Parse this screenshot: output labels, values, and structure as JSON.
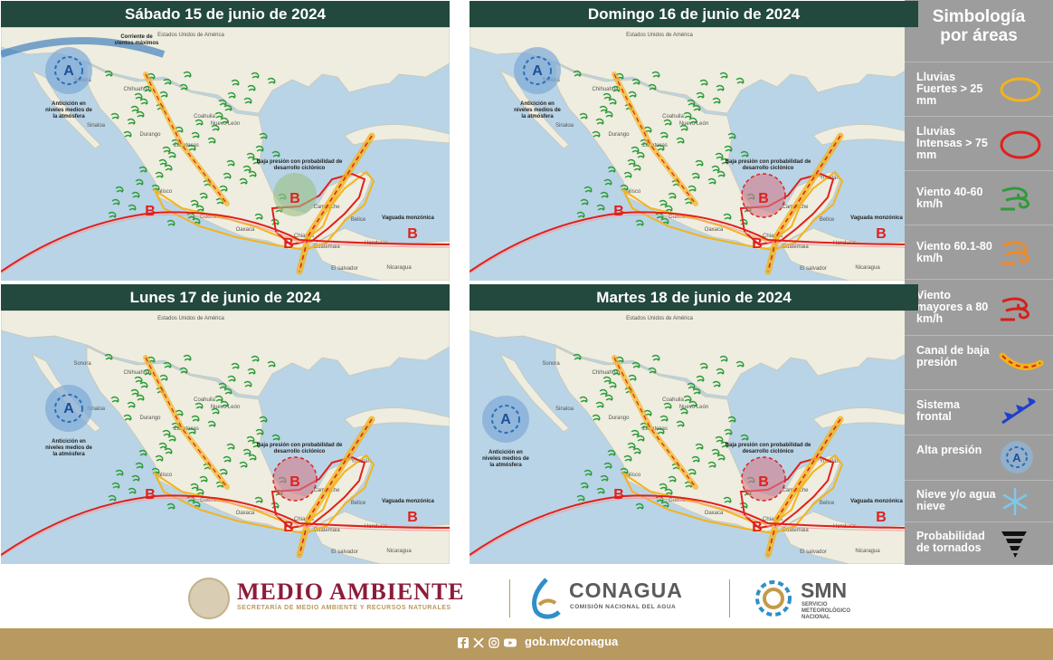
{
  "panels": [
    {
      "title": "Sábado 15 de junio de 2024",
      "high_label": "Anticición en niveles medios de la atmósfera",
      "jet_label": "Corriente de vientos máximos",
      "low_label": "Baja presión con probabilidad de desarrollo ciclónico",
      "trough_label": "Vaguada monzónica",
      "country_label": "Estados Unidos de América",
      "places": [
        "Sonora",
        "Chihuahua",
        "Sinaloa",
        "Durango",
        "Coahuila",
        "Nuevo León",
        "Zacatecas",
        "Jalisco",
        "Guerrero",
        "Oaxaca",
        "Chiapas",
        "Campeche",
        "Belice",
        "Honduras",
        "Guatemala",
        "El salvador",
        "Nicaragua"
      ],
      "low_symbols": [
        "B",
        "B",
        "B",
        "B"
      ]
    },
    {
      "title": "Domingo 16 de junio de 2024",
      "high_label": "Anticición en niveles medios de la atmósfera",
      "low_label": "Baja presión con probabilidad de desarrollo ciclónico",
      "trough_label": "Vaguada monzónica",
      "country_label": "Estados Unidos de América",
      "places": [
        "Sonora",
        "Chihuahua",
        "Sinaloa",
        "Durango",
        "Coahuila",
        "Nuevo León",
        "Zacatecas",
        "Jalisco",
        "Guerrero",
        "Oaxaca",
        "Chiapas",
        "Campeche",
        "Yucatán",
        "Belice",
        "Honduras",
        "Guatemala",
        "El salvador",
        "Nicaragua"
      ],
      "low_symbols": [
        "B",
        "B",
        "B",
        "B"
      ]
    },
    {
      "title": "Lunes 17 de junio de 2024",
      "high_label": "Anticición en niveles medios de la atmósfera",
      "low_label": "Baja presión con probabilidad de desarrollo ciclónico",
      "trough_label": "Vaguada monzónica",
      "country_label": "Estados Unidos de América",
      "places": [
        "Sonora",
        "Chihuahua",
        "Sinaloa",
        "Durango",
        "Coahuila",
        "Nuevo León",
        "Zacatecas",
        "Jalisco",
        "Guerrero",
        "Oaxaca",
        "Chiapas",
        "Campeche",
        "Yucatán",
        "Belice",
        "Honduras",
        "Guatemala",
        "El salvador",
        "Nicaragua"
      ],
      "low_symbols": [
        "B",
        "B",
        "B",
        "B"
      ]
    },
    {
      "title": "Martes 18 de junio de 2024",
      "high_label": "Anticición en niveles medios de la atmósfera",
      "low_label": "Baja presión con probabilidad de desarrollo ciclónico",
      "trough_label": "Vaguada monzónica",
      "country_label": "Estados Unidos de América",
      "places": [
        "Sonora",
        "Chihuahua",
        "Sinaloa",
        "Durango",
        "Coahuila",
        "Nuevo León",
        "Zacatecas",
        "Jalisco",
        "Guerrero",
        "Oaxaca",
        "Chiapas",
        "Campeche",
        "Yucatán",
        "Belice",
        "Honduras",
        "Guatemala",
        "El salvador",
        "Nicaragua"
      ],
      "low_symbols": [
        "B",
        "B",
        "B",
        "B"
      ]
    }
  ],
  "high_symbol": "A",
  "legend": {
    "title": "Simbología por áreas",
    "items": [
      {
        "label": "Lluvias Fuertes > 25 mm",
        "icon": "yellow-ellipse-icon",
        "color": "#f3b31b"
      },
      {
        "label": "Lluvias Intensas > 75 mm",
        "icon": "red-ellipse-icon",
        "color": "#e0201c"
      },
      {
        "label": "Viento 40-60 km/h",
        "icon": "green-wind-icon",
        "color": "#2e9b3a"
      },
      {
        "label": "Viento 60.1-80 km/h",
        "icon": "orange-wind-icon",
        "color": "#f08a2a"
      },
      {
        "label": "Viento mayores a 80 km/h",
        "icon": "red-wind-icon",
        "color": "#d6201c"
      },
      {
        "label": "Canal de baja presión",
        "icon": "low-pressure-channel-icon",
        "color": "#f3b31b"
      },
      {
        "label": "Sistema frontal",
        "icon": "front-icon",
        "color": "#1e3fcf"
      },
      {
        "label": "Alta presión",
        "icon": "high-pressure-icon",
        "color": "#2a6fb8"
      },
      {
        "label": "Nieve y/o agua nieve",
        "icon": "snowflake-icon",
        "color": "#7ec8ea"
      },
      {
        "label": "Probabilidad de tornados",
        "icon": "tornado-icon",
        "color": "#111111"
      }
    ]
  },
  "footer": {
    "medio_ambiente": "MEDIO AMBIENTE",
    "medio_ambiente_sub": "SECRETARÍA DE MEDIO AMBIENTE Y RECURSOS NATURALES",
    "conagua": "CONAGUA",
    "conagua_sub": "COMISIÓN NACIONAL DEL AGUA",
    "smn": "SMN",
    "smn_sub": "SERVICIO METEOROLÓGICO NACIONAL",
    "url": "gob.mx/conagua",
    "social_icons": [
      "facebook-icon",
      "x-icon",
      "instagram-icon",
      "youtube-icon"
    ]
  },
  "colors": {
    "header": "#23483d",
    "ocean": "#b9d4e6",
    "land": "#eeeddf",
    "rain_strong": "#f3b31b",
    "rain_intense": "#e0201c",
    "wind_green": "#2e9b3a",
    "legend_bg": "#9d9d9d",
    "footer_bar": "#b8995f",
    "brand_red": "#8c1c3b"
  }
}
